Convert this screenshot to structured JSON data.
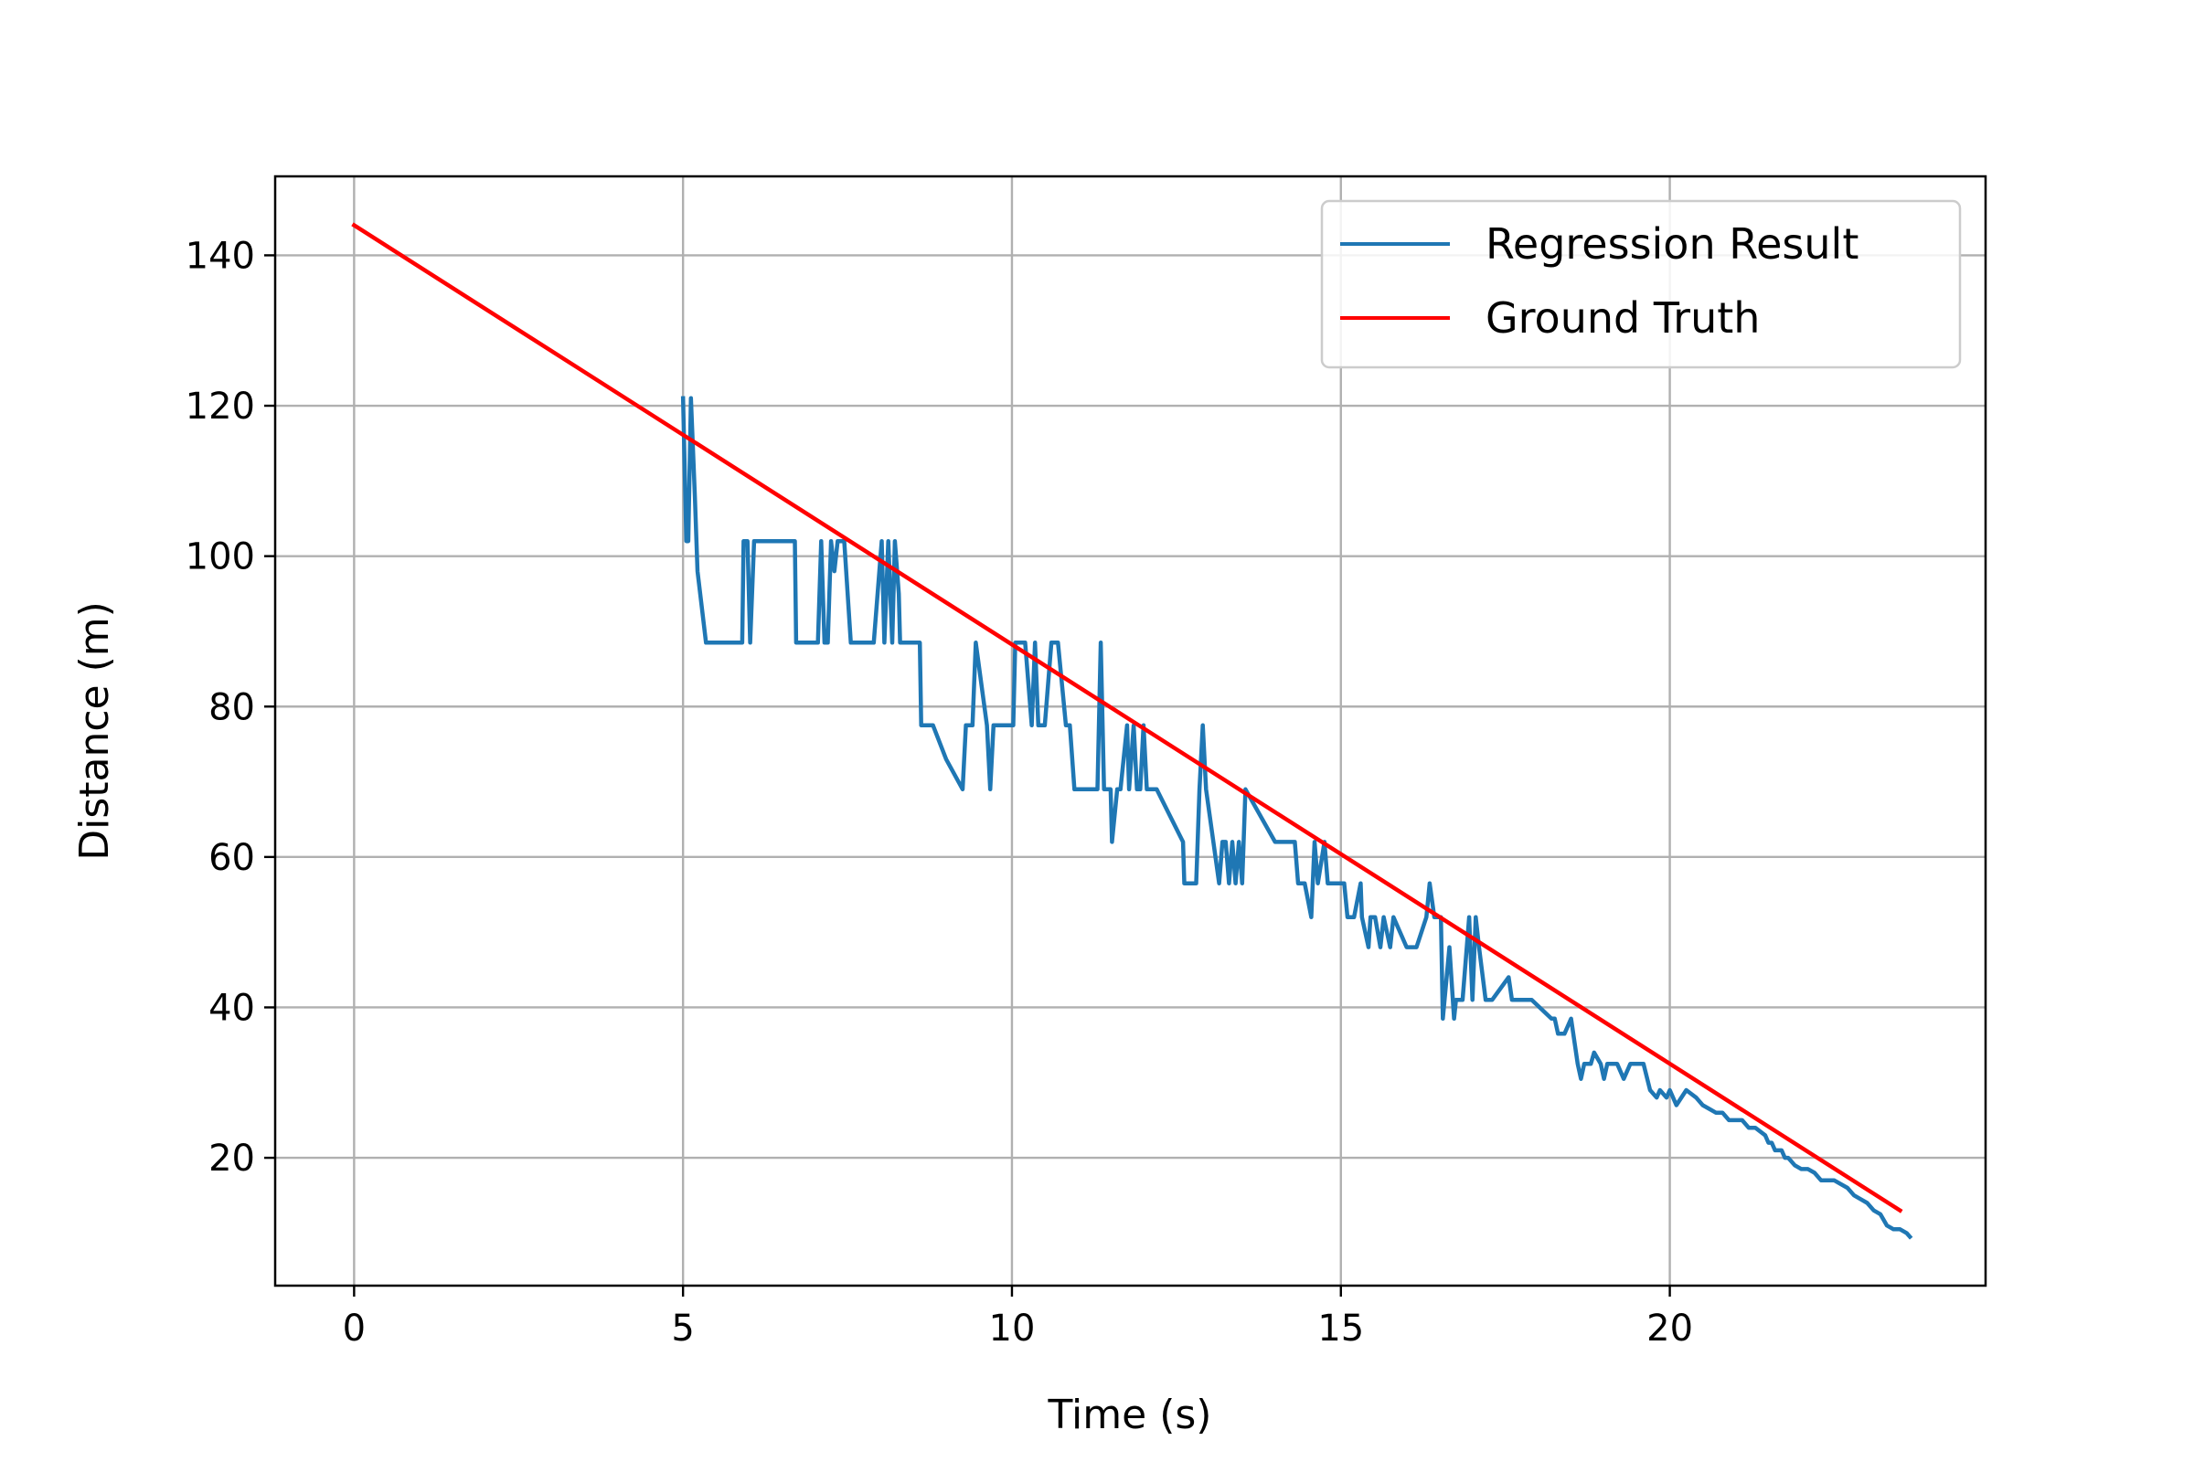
{
  "chart_data": {
    "type": "line",
    "title": "",
    "xlabel": "Time (s)",
    "ylabel": "Distance (m)",
    "xlim": [
      -1.2,
      24.8
    ],
    "ylim": [
      3,
      150.5
    ],
    "xticks": [
      0,
      5,
      10,
      15,
      20
    ],
    "yticks": [
      20,
      40,
      60,
      80,
      100,
      120,
      140
    ],
    "grid": true,
    "legend_position": "top-right",
    "series": [
      {
        "name": "Regression Result",
        "color": "#1f77b4",
        "x": [
          5.0,
          5.05,
          5.08,
          5.12,
          5.18,
          5.22,
          5.35,
          5.45,
          5.6,
          5.9,
          5.92,
          5.98,
          6.02,
          6.08,
          6.12,
          6.5,
          6.7,
          6.72,
          6.9,
          7.05,
          7.1,
          7.15,
          7.2,
          7.25,
          7.3,
          7.35,
          7.45,
          7.55,
          7.6,
          7.9,
          8.02,
          8.06,
          8.12,
          8.18,
          8.22,
          8.28,
          8.3,
          8.6,
          8.62,
          8.8,
          9.0,
          9.25,
          9.3,
          9.4,
          9.45,
          9.55,
          9.62,
          9.67,
          9.72,
          9.8,
          10.02,
          10.05,
          10.1,
          10.2,
          10.3,
          10.35,
          10.4,
          10.5,
          10.6,
          10.7,
          10.82,
          10.88,
          10.95,
          11.3,
          11.35,
          11.4,
          11.5,
          11.52,
          11.6,
          11.65,
          11.75,
          11.78,
          11.85,
          11.9,
          11.95,
          12.0,
          12.05,
          12.1,
          12.15,
          12.2,
          12.6,
          12.62,
          12.8,
          12.85,
          12.9,
          12.95,
          13.15,
          13.2,
          13.25,
          13.3,
          13.35,
          13.4,
          13.45,
          13.5,
          13.55,
          14.0,
          14.05,
          14.15,
          14.2,
          14.3,
          14.35,
          14.45,
          14.55,
          14.6,
          14.65,
          14.75,
          14.8,
          14.95,
          15.05,
          15.1,
          15.2,
          15.3,
          15.32,
          15.42,
          15.45,
          15.52,
          15.6,
          15.65,
          15.75,
          15.8,
          16.0,
          16.05,
          16.15,
          16.3,
          16.35,
          16.42,
          16.45,
          16.52,
          16.55,
          16.65,
          16.72,
          16.75,
          16.85,
          16.95,
          17.0,
          17.05,
          17.1,
          17.2,
          17.3,
          17.55,
          17.6,
          17.85,
          17.9,
          18.2,
          18.25,
          18.3,
          18.4,
          18.5,
          18.6,
          18.65,
          18.7,
          18.8,
          18.85,
          18.95,
          19.0,
          19.05,
          19.1,
          19.2,
          19.3,
          19.4,
          19.5,
          19.6,
          19.7,
          19.8,
          19.85,
          19.95,
          20.0,
          20.1,
          20.25,
          20.4,
          20.5,
          20.7,
          20.8,
          20.9,
          21.1,
          21.2,
          21.3,
          21.45,
          21.5,
          21.55,
          21.6,
          21.7,
          21.75,
          21.8,
          21.9,
          22.0,
          22.1,
          22.2,
          22.3,
          22.5,
          22.7,
          22.8,
          23.0,
          23.1,
          23.2,
          23.3,
          23.4,
          23.5,
          23.6,
          23.65
        ],
        "y": [
          121,
          102,
          102,
          121,
          108,
          98,
          88.5,
          88.5,
          88.5,
          88.5,
          102,
          102,
          88.5,
          102,
          102,
          102,
          102,
          88.5,
          88.5,
          88.5,
          102,
          88.5,
          88.5,
          102,
          98,
          102,
          102,
          88.5,
          88.5,
          88.5,
          102,
          88.5,
          102,
          88.5,
          102,
          95,
          88.5,
          88.5,
          77.5,
          77.5,
          73,
          69,
          77.5,
          77.5,
          88.5,
          82,
          77.5,
          69,
          77.5,
          77.5,
          77.5,
          88.5,
          88.5,
          88.5,
          77.5,
          88.5,
          77.5,
          77.5,
          88.5,
          88.5,
          77.5,
          77.5,
          69,
          69,
          88.5,
          69,
          69,
          62,
          69,
          69,
          77.5,
          69,
          77.5,
          69,
          69,
          77.5,
          69,
          69,
          69,
          69,
          62,
          56.5,
          56.5,
          69,
          77.5,
          69,
          56.5,
          62,
          62,
          56.5,
          62,
          56.5,
          62,
          56.5,
          69,
          62,
          62,
          62,
          62,
          62,
          56.5,
          56.5,
          52,
          62,
          56.5,
          62,
          56.5,
          56.5,
          56.5,
          52,
          52,
          56.5,
          52,
          48,
          52,
          52,
          48,
          52,
          48,
          52,
          48,
          48,
          48,
          52,
          56.5,
          52,
          52,
          52,
          38.5,
          48,
          38.5,
          41,
          41,
          52,
          41,
          52,
          48,
          41,
          41,
          44,
          41,
          41,
          41,
          38.5,
          38.5,
          36.5,
          36.5,
          38.5,
          32.5,
          30.5,
          32.5,
          32.5,
          34,
          32.5,
          30.5,
          32.5,
          32.5,
          32.5,
          30.5,
          32.5,
          32.5,
          32.5,
          29,
          28,
          29,
          28,
          29,
          27,
          29,
          28,
          27,
          26,
          26,
          25,
          25,
          24,
          24,
          23,
          22,
          22,
          21,
          21,
          20,
          20,
          19,
          18.5,
          18.5,
          18,
          17,
          17,
          16,
          15,
          14,
          13,
          12.5,
          11,
          10.5,
          10.5,
          10,
          9.5
        ]
      },
      {
        "name": "Ground Truth",
        "color": "#ff0000",
        "x": [
          0,
          23.5
        ],
        "y": [
          144,
          13
        ]
      }
    ]
  }
}
